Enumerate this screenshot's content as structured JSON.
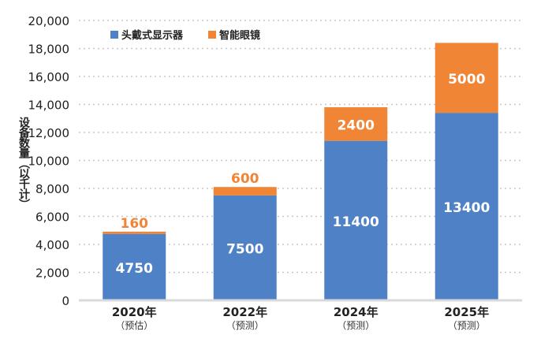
{
  "chart_data": {
    "type": "bar",
    "stacked": true,
    "categories": [
      "2020年",
      "2022年",
      "2024年",
      "2025年"
    ],
    "category_sublabels": [
      "（预估）",
      "（预测）",
      "（预测）",
      "（预测）"
    ],
    "series": [
      {
        "name": "头戴式显示器",
        "values": [
          4750,
          7500,
          11400,
          13400
        ],
        "color": "#4f81c7"
      },
      {
        "name": "智能眼镜",
        "values": [
          160,
          600,
          2400,
          5000
        ],
        "color": "#ef8535"
      }
    ],
    "ylabel": "设备数量（以千计）",
    "xlabel": "",
    "ylim": [
      0,
      20000
    ],
    "yticks": [
      0,
      2000,
      4000,
      6000,
      8000,
      10000,
      12000,
      14000,
      16000,
      18000,
      20000
    ],
    "ytick_labels": [
      "0",
      "2,000",
      "4,000",
      "6,000",
      "8,000",
      "10,000",
      "12,000",
      "14,000",
      "16,000",
      "18,000",
      "20,000"
    ],
    "grid": true,
    "legend": "top-left"
  }
}
